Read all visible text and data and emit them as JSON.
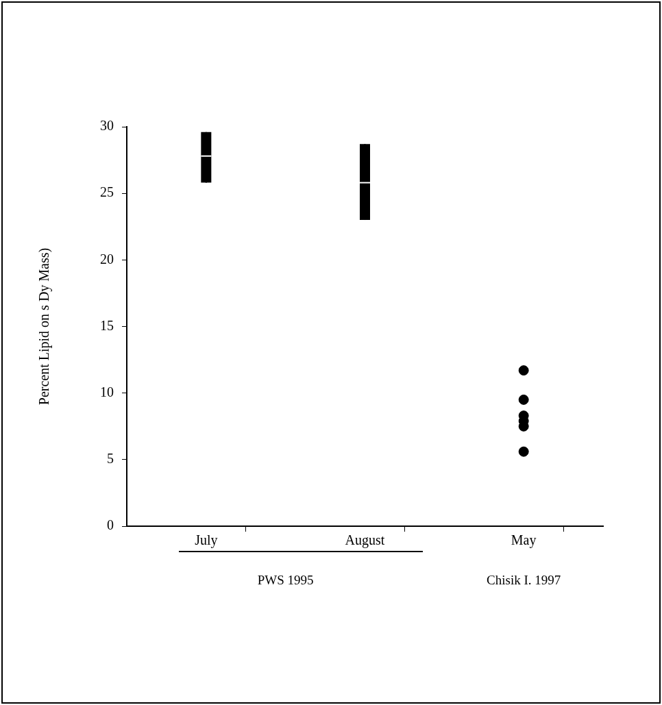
{
  "chart_data": {
    "type": "scatter",
    "ylabel": "Percent Lipid on s Dy Mass)",
    "categories": [
      "July",
      "August",
      "May"
    ],
    "ylim": [
      0,
      30
    ],
    "yticks": [
      0,
      5,
      10,
      15,
      20,
      25,
      30
    ],
    "grid": false,
    "legend": false,
    "series": [
      {
        "type": "box",
        "color": "#000000",
        "boxes": [
          {
            "low": 25.8,
            "q1": 25.8,
            "median": 27.8,
            "q3": 29.6,
            "high": 29.6
          },
          {
            "low": 23.0,
            "q1": 23.0,
            "median": 25.8,
            "q3": 28.7,
            "high": 28.7
          },
          null
        ]
      },
      {
        "color": "#000000",
        "marker": "circle",
        "x": [
          "May",
          "May",
          "May",
          "May",
          "May",
          "May"
        ],
        "values": [
          11.7,
          9.5,
          8.3,
          7.9,
          7.5,
          5.6
        ]
      }
    ],
    "annotations": [
      "PWS 1995",
      "Chisik I. 1997"
    ]
  }
}
